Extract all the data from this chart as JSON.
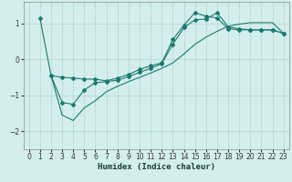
{
  "xlabel": "Humidex (Indice chaleur)",
  "bg_color": "#d4eeee",
  "grid_color": "#b8d8d8",
  "line_color": "#1a7a6e",
  "xlim": [
    -0.5,
    23.5
  ],
  "ylim": [
    -2.5,
    1.6
  ],
  "yticks": [
    -2,
    -1,
    0,
    1
  ],
  "xticks": [
    0,
    1,
    2,
    3,
    4,
    5,
    6,
    7,
    8,
    9,
    10,
    11,
    12,
    13,
    14,
    15,
    16,
    17,
    18,
    19,
    20,
    21,
    22,
    23
  ],
  "line1_x": [
    1,
    2,
    3,
    4,
    5,
    6,
    7,
    8,
    9,
    10,
    11,
    12,
    13,
    14,
    15,
    16,
    17,
    18,
    19,
    20,
    21,
    22,
    23
  ],
  "line1_y": [
    1.15,
    -0.45,
    -0.5,
    -0.52,
    -0.55,
    -0.55,
    -0.6,
    -0.52,
    -0.42,
    -0.28,
    -0.18,
    -0.1,
    0.55,
    0.95,
    1.3,
    1.2,
    1.15,
    0.85,
    0.82,
    0.82,
    0.82,
    0.82,
    0.72
  ],
  "line2_x": [
    2,
    3,
    4,
    5,
    6,
    7,
    8,
    9,
    10,
    11,
    12,
    13,
    14,
    15,
    16,
    17,
    18,
    19,
    20,
    21,
    22,
    23
  ],
  "line2_y": [
    -0.45,
    -1.2,
    -1.25,
    -0.85,
    -0.65,
    -0.62,
    -0.58,
    -0.48,
    -0.36,
    -0.25,
    -0.12,
    0.42,
    0.88,
    1.1,
    1.12,
    1.3,
    0.9,
    0.85,
    0.82,
    0.82,
    0.82,
    0.72
  ],
  "line3_x": [
    2,
    3,
    4,
    5,
    6,
    7,
    8,
    9,
    10,
    11,
    12,
    13,
    14,
    15,
    16,
    17,
    18,
    19,
    20,
    21,
    22,
    23
  ],
  "line3_y": [
    -0.45,
    -1.55,
    -1.7,
    -1.35,
    -1.15,
    -0.9,
    -0.75,
    -0.62,
    -0.5,
    -0.38,
    -0.25,
    -0.1,
    0.15,
    0.42,
    0.62,
    0.78,
    0.92,
    0.98,
    1.02,
    1.02,
    1.02,
    0.72
  ]
}
